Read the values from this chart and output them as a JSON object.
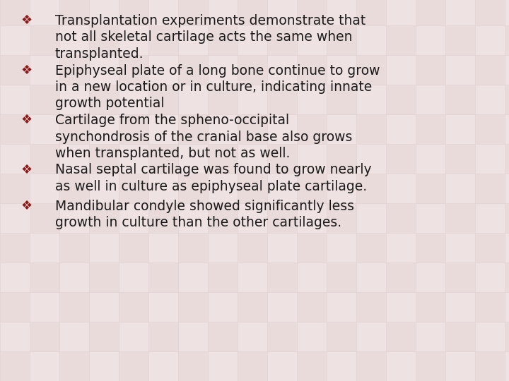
{
  "background_color": "#ede0e0",
  "tile_color": "#e8d5d5",
  "tile_color2": "#f0e5e5",
  "bullet_color": "#8b1a1a",
  "text_color": "#1a1a1a",
  "bullet_symbol": "❖",
  "font_size": 13.5,
  "bullet_font_size": 13,
  "bullets": [
    "Transplantation experiments demonstrate that\nnot all skeletal cartilage acts the same when\ntransplanted.",
    "Epiphyseal plate of a long bone continue to grow\nin a new location or in culture, indicating innate\ngrowth potential",
    "Cartilage from the spheno-occipital\nsynchondrosis of the cranial base also grows\nwhen transplanted, but not as well.",
    "Nasal septal cartilage was found to grow nearly\nas well in culture as epiphyseal plate cartilage.",
    "Mandibular condyle showed significantly less\ngrowth in culture than the other cartilages."
  ],
  "figwidth": 7.2,
  "figheight": 5.4,
  "dpi": 100
}
